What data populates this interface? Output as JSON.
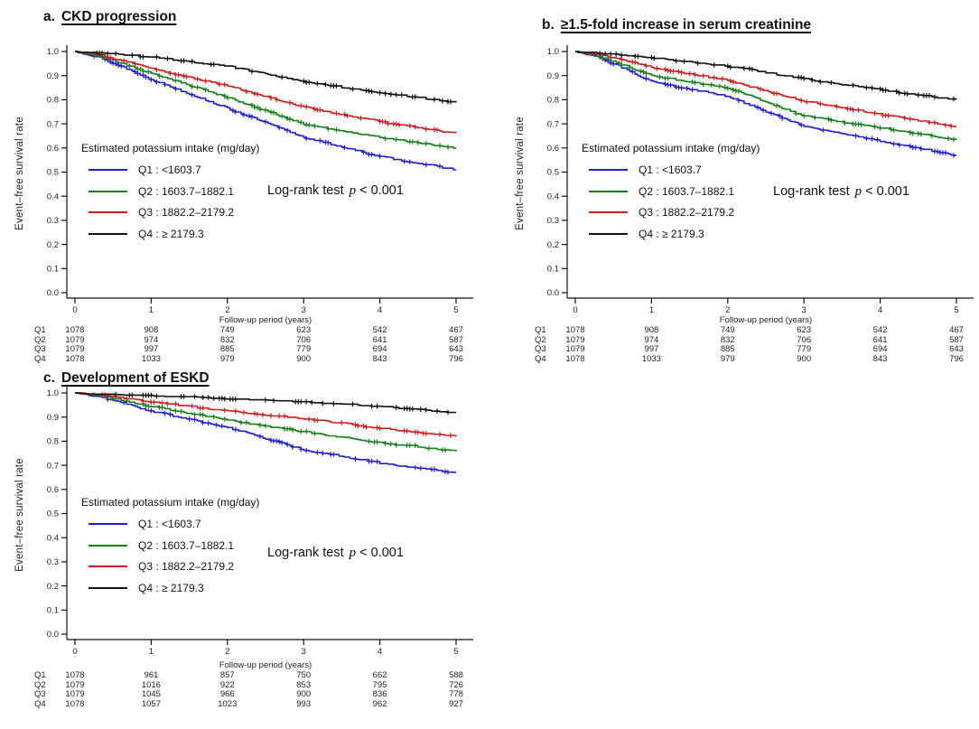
{
  "figure": {
    "background": "#ffffff"
  },
  "chart_data": [
    {
      "panel_letter": "a.",
      "title": "CKD progression",
      "type": "line",
      "chart_kind": "kaplan-meier-survival",
      "xlabel": "Follow-up period (years)",
      "ylabel": "Event–free survival rate",
      "xlim": [
        0,
        5
      ],
      "ylim": [
        0.0,
        1.0
      ],
      "grid": false,
      "x_tick_labels": [
        "0",
        "1",
        "2",
        "3",
        "4",
        "5"
      ],
      "y_tick_labels": [
        "0.0",
        "0.1",
        "0.2",
        "0.3",
        "0.4",
        "0.5",
        "0.6",
        "0.7",
        "0.8",
        "0.9",
        "1.0"
      ],
      "legend_title": "Estimated potassium intake (mg/day)",
      "legend_position": "inside-left-middle",
      "annotation": {
        "text_before": "Log-rank test",
        "italic_var": "p",
        "text_after": "< 0.001"
      },
      "series": [
        {
          "name": "Q1",
          "label": "Q1 : <1603.7",
          "color": "#2222cc",
          "x": [
            0,
            1,
            2,
            3,
            4,
            5
          ],
          "values": [
            1.0,
            0.885,
            0.765,
            0.645,
            0.565,
            0.51
          ]
        },
        {
          "name": "Q2",
          "label": "Q2 : 1603.7–1882.1",
          "color": "#17801a",
          "x": [
            0,
            1,
            2,
            3,
            4,
            5
          ],
          "values": [
            1.0,
            0.91,
            0.81,
            0.7,
            0.645,
            0.6
          ]
        },
        {
          "name": "Q3",
          "label": "Q3 : 1882.2–2179.2",
          "color": "#cc2020",
          "x": [
            0,
            1,
            2,
            3,
            4,
            5
          ],
          "values": [
            1.0,
            0.93,
            0.858,
            0.77,
            0.71,
            0.66
          ]
        },
        {
          "name": "Q4",
          "label": "Q4 : ≥ 2179.3",
          "color": "#111111",
          "x": [
            0,
            1,
            2,
            3,
            4,
            5
          ],
          "values": [
            1.0,
            0.978,
            0.94,
            0.875,
            0.83,
            0.79
          ]
        }
      ],
      "risk_table": {
        "rows": [
          {
            "label": "Q1",
            "counts": [
              "1078",
              "908",
              "749",
              "623",
              "542",
              "467"
            ]
          },
          {
            "label": "Q2",
            "counts": [
              "1079",
              "974",
              "832",
              "706",
              "641",
              "587"
            ]
          },
          {
            "label": "Q3",
            "counts": [
              "1079",
              "997",
              "885",
              "779",
              "694",
              "643"
            ]
          },
          {
            "label": "Q4",
            "counts": [
              "1078",
              "1033",
              "979",
              "900",
              "843",
              "796"
            ]
          }
        ]
      }
    },
    {
      "panel_letter": "b.",
      "title": "≥1.5-fold increase in serum creatinine",
      "type": "line",
      "chart_kind": "kaplan-meier-survival",
      "xlabel": "Follow-up period (years)",
      "ylabel": "Event–free survival rate",
      "xlim": [
        0,
        5
      ],
      "ylim": [
        0.0,
        1.0
      ],
      "grid": false,
      "x_tick_labels": [
        "0",
        "1",
        "2",
        "3",
        "4",
        "5"
      ],
      "y_tick_labels": [
        "0.0",
        "0.1",
        "0.2",
        "0.3",
        "0.4",
        "0.5",
        "0.6",
        "0.7",
        "0.8",
        "0.9",
        "1.0"
      ],
      "legend_title": "Estimated potassium intake (mg/day)",
      "legend_position": "inside-left-middle",
      "annotation": {
        "text_before": "Log-rank test",
        "italic_var": "p",
        "text_after": "< 0.001"
      },
      "series": [
        {
          "name": "Q1",
          "label": "Q1 : <1603.7",
          "color": "#2222cc",
          "x": [
            0,
            1,
            2,
            3,
            4,
            5
          ],
          "values": [
            1.0,
            0.875,
            0.814,
            0.69,
            0.63,
            0.57
          ]
        },
        {
          "name": "Q2",
          "label": "Q2 : 1603.7–1882.1",
          "color": "#17801a",
          "x": [
            0,
            1,
            2,
            3,
            4,
            5
          ],
          "values": [
            1.0,
            0.9,
            0.85,
            0.733,
            0.685,
            0.635
          ]
        },
        {
          "name": "Q3",
          "label": "Q3 : 1882.2–2179.2",
          "color": "#cc2020",
          "x": [
            0,
            1,
            2,
            3,
            4,
            5
          ],
          "values": [
            1.0,
            0.935,
            0.88,
            0.795,
            0.74,
            0.69
          ]
        },
        {
          "name": "Q4",
          "label": "Q4 : ≥ 2179.3",
          "color": "#111111",
          "x": [
            0,
            1,
            2,
            3,
            4,
            5
          ],
          "values": [
            1.0,
            0.975,
            0.94,
            0.887,
            0.842,
            0.8
          ]
        }
      ],
      "risk_table": {
        "rows": [
          {
            "label": "Q1",
            "counts": [
              "1078",
              "908",
              "749",
              "623",
              "542",
              "467"
            ]
          },
          {
            "label": "Q2",
            "counts": [
              "1079",
              "974",
              "832",
              "706",
              "641",
              "587"
            ]
          },
          {
            "label": "Q3",
            "counts": [
              "1079",
              "997",
              "885",
              "779",
              "694",
              "643"
            ]
          },
          {
            "label": "Q4",
            "counts": [
              "1078",
              "1033",
              "979",
              "900",
              "843",
              "796"
            ]
          }
        ]
      }
    },
    {
      "panel_letter": "c.",
      "title": "Development of ESKD",
      "type": "line",
      "chart_kind": "kaplan-meier-survival",
      "xlabel": "Follow-up period (years)",
      "ylabel": "Event–free survival rate",
      "xlim": [
        0,
        5
      ],
      "ylim": [
        0.0,
        1.0
      ],
      "grid": false,
      "x_tick_labels": [
        "0",
        "1",
        "2",
        "3",
        "4",
        "5"
      ],
      "y_tick_labels": [
        "0.0",
        "0.1",
        "0.2",
        "0.3",
        "0.4",
        "0.5",
        "0.6",
        "0.7",
        "0.8",
        "0.9",
        "1.0"
      ],
      "legend_title": "Estimated potassium intake (mg/day)",
      "legend_position": "inside-left-middle",
      "annotation": {
        "text_before": "Log-rank test",
        "italic_var": "p",
        "text_after": "< 0.001"
      },
      "series": [
        {
          "name": "Q1",
          "label": "Q1 : <1603.7",
          "color": "#2222cc",
          "x": [
            0,
            1,
            2,
            3,
            4,
            5
          ],
          "values": [
            1.0,
            0.925,
            0.858,
            0.765,
            0.71,
            0.67
          ]
        },
        {
          "name": "Q2",
          "label": "Q2 : 1603.7–1882.1",
          "color": "#17801a",
          "x": [
            0,
            1,
            2,
            3,
            4,
            5
          ],
          "values": [
            1.0,
            0.945,
            0.888,
            0.84,
            0.795,
            0.76
          ]
        },
        {
          "name": "Q3",
          "label": "Q3 : 1882.2–2179.2",
          "color": "#cc2020",
          "x": [
            0,
            1,
            2,
            3,
            4,
            5
          ],
          "values": [
            1.0,
            0.965,
            0.925,
            0.895,
            0.855,
            0.82
          ]
        },
        {
          "name": "Q4",
          "label": "Q4 : ≥ 2179.3",
          "color": "#111111",
          "x": [
            0,
            1,
            2,
            3,
            4,
            5
          ],
          "values": [
            1.0,
            0.99,
            0.978,
            0.965,
            0.945,
            0.92
          ]
        }
      ],
      "risk_table": {
        "rows": [
          {
            "label": "Q1",
            "counts": [
              "1078",
              "961",
              "857",
              "750",
              "662",
              "588"
            ]
          },
          {
            "label": "Q2",
            "counts": [
              "1079",
              "1016",
              "922",
              "853",
              "795",
              "726"
            ]
          },
          {
            "label": "Q3",
            "counts": [
              "1079",
              "1045",
              "966",
              "900",
              "836",
              "778"
            ]
          },
          {
            "label": "Q4",
            "counts": [
              "1078",
              "1057",
              "1023",
              "993",
              "962",
              "927"
            ]
          }
        ]
      }
    }
  ]
}
